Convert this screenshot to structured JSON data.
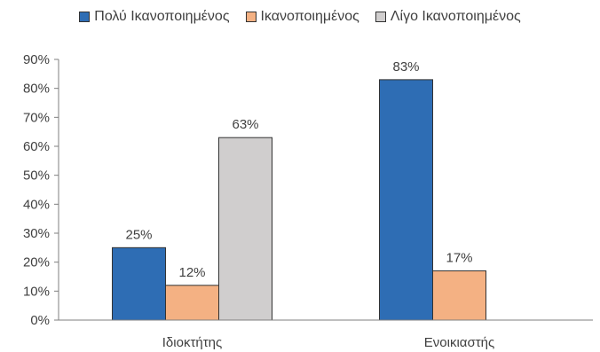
{
  "chart_data": {
    "type": "bar",
    "categories": [
      "Ιδιοκτήτης",
      "Ενοικιαστής"
    ],
    "series": [
      {
        "name": "Πολύ Ικανοποιημένος",
        "color": "#2e6db4",
        "values": [
          25,
          83
        ],
        "labels": [
          "25%",
          "83%"
        ]
      },
      {
        "name": "Ικανοποιημένος",
        "color": "#f4b183",
        "values": [
          12,
          17
        ],
        "labels": [
          "12%",
          "17%"
        ]
      },
      {
        "name": "Λίγο Ικανοποιημένος",
        "color": "#d0cece",
        "values": [
          63,
          null
        ],
        "labels": [
          "63%",
          ""
        ]
      }
    ],
    "ylim": [
      0,
      90
    ],
    "yticks": [
      0,
      10,
      20,
      30,
      40,
      50,
      60,
      70,
      80,
      90
    ],
    "ytick_labels": [
      "0%",
      "10%",
      "20%",
      "30%",
      "40%",
      "50%",
      "60%",
      "70%",
      "80%",
      "90%"
    ],
    "legend_position": "top",
    "grid": false
  }
}
